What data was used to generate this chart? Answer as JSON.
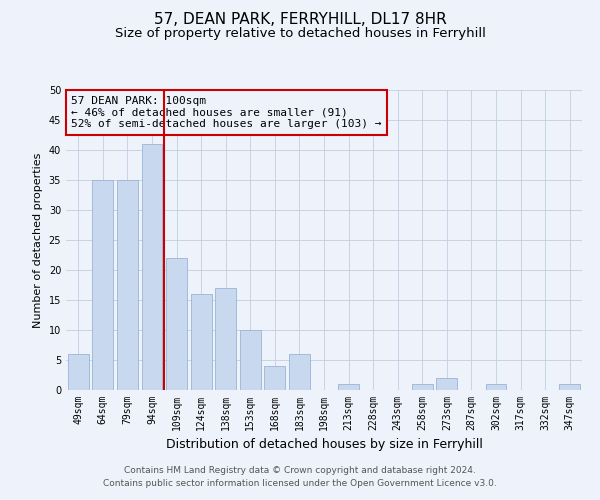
{
  "title": "57, DEAN PARK, FERRYHILL, DL17 8HR",
  "subtitle": "Size of property relative to detached houses in Ferryhill",
  "xlabel": "Distribution of detached houses by size in Ferryhill",
  "ylabel": "Number of detached properties",
  "categories": [
    "49sqm",
    "64sqm",
    "79sqm",
    "94sqm",
    "109sqm",
    "124sqm",
    "138sqm",
    "153sqm",
    "168sqm",
    "183sqm",
    "198sqm",
    "213sqm",
    "228sqm",
    "243sqm",
    "258sqm",
    "273sqm",
    "287sqm",
    "302sqm",
    "317sqm",
    "332sqm",
    "347sqm"
  ],
  "values": [
    6,
    35,
    35,
    41,
    22,
    16,
    17,
    10,
    4,
    6,
    0,
    1,
    0,
    0,
    1,
    2,
    0,
    1,
    0,
    0,
    1
  ],
  "bar_color": "#c8d8ef",
  "bar_edge_color": "#9ab4d4",
  "red_line_x": 3.5,
  "red_line_color": "#cc0000",
  "annotation_line1": "57 DEAN PARK: 100sqm",
  "annotation_line2": "← 46% of detached houses are smaller (91)",
  "annotation_line3": "52% of semi-detached houses are larger (103) →",
  "ylim": [
    0,
    50
  ],
  "yticks": [
    0,
    5,
    10,
    15,
    20,
    25,
    30,
    35,
    40,
    45,
    50
  ],
  "grid_color": "#c0cfe0",
  "background_color": "#eef2fb",
  "footer_line1": "Contains HM Land Registry data © Crown copyright and database right 2024.",
  "footer_line2": "Contains public sector information licensed under the Open Government Licence v3.0.",
  "title_fontsize": 11,
  "subtitle_fontsize": 9.5,
  "xlabel_fontsize": 9,
  "ylabel_fontsize": 8,
  "tick_fontsize": 7,
  "annotation_fontsize": 8,
  "footer_fontsize": 6.5
}
